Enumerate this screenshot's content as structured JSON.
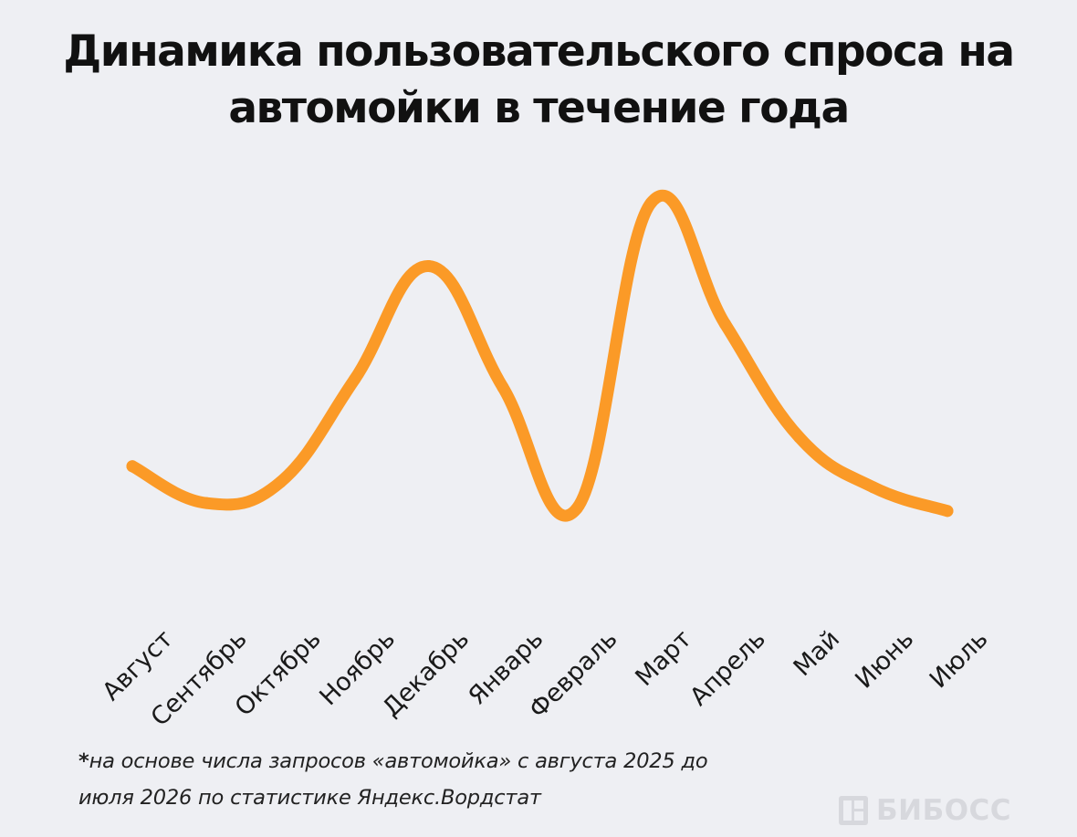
{
  "chart_data": {
    "type": "line",
    "title_lines": [
      "Динамика пользовательского спроса на",
      "автомойки в течение года"
    ],
    "categories": [
      "Август",
      "Сентябрь",
      "Октябрь",
      "Ноябрь",
      "Декабрь",
      "Январь",
      "Февраль",
      "Март",
      "Апрель",
      "Май",
      "Июнь",
      "Июль"
    ],
    "series": [
      {
        "values": [
          0.24,
          0.1,
          0.18,
          0.57,
          1.0,
          0.54,
          0.08,
          1.24,
          0.78,
          0.35,
          0.16,
          0.07
        ]
      }
    ],
    "xlabel": "",
    "ylabel": "",
    "ylim": [
      0,
      1.3
    ],
    "grid": false,
    "legend": "none",
    "line_color": "#fb9a27"
  },
  "footnote": {
    "star": "*",
    "line1": "на основе числа запросов «автомойка» с августа 2025 до",
    "line2": "июля 2026 по статистике Яндекс.Вордстат"
  },
  "logo": {
    "text": "БИБОСС",
    "icon": "bibos-logo-icon",
    "color": "#d7d8dd"
  }
}
